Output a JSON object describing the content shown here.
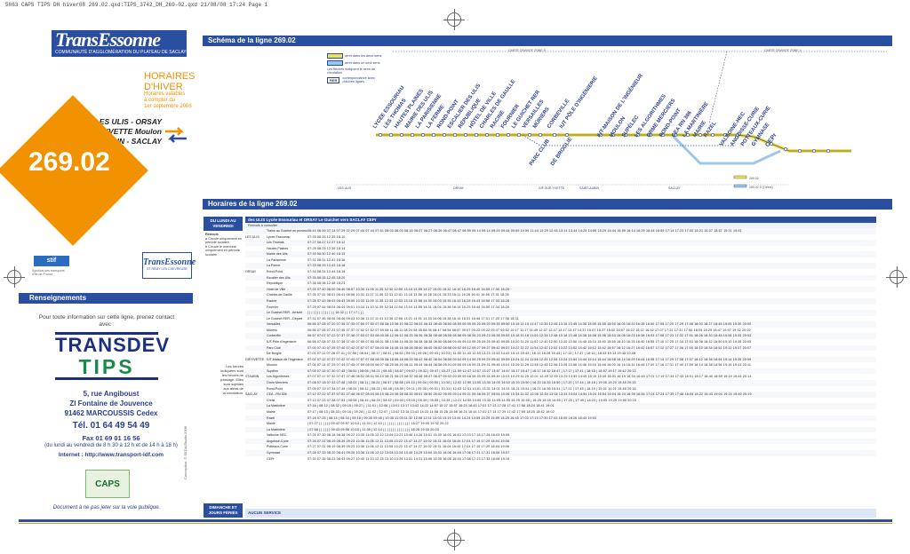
{
  "print_header": "5063 CAPS TIPS DH hiver08 269.02.qxd:TIPS_3742_DH_269-02.qxd  21/08/08  17:24  Page 1",
  "brand": {
    "logo": "TransEssonne",
    "subtitle": "COMMUNAUTÉ D'AGGLOMÉRATION DU PLATEAU DE SACLAY",
    "season_line1": "HORAIRES",
    "season_line2": "D'HIVER",
    "validity": [
      "Horaires valables",
      "à compter du",
      "1er septembre 2008"
    ]
  },
  "line": {
    "number": "269.02",
    "destinations": [
      "LES ULIS - ORSAY",
      "GIF-SUR-YVETTE Moulon",
      "SAINT-AUBIN - SACLAY"
    ],
    "colors": {
      "orange": "#f39200",
      "blue": "#2a4ea0",
      "yellow": "#f7e04a"
    }
  },
  "partners": {
    "stif": "stif",
    "stif_caption": "Syndicat des transports d'Île-de-France",
    "te_small": "TransEssonne",
    "te_small_sub": "ST RÉMY LES CHEVREUSE"
  },
  "renseignements": {
    "title": "Renseignements",
    "intro": "Pour toute information sur cette ligne, prenez contact avec :",
    "company_line1": "TRANSDEV",
    "company_line2": "TIPS",
    "address": [
      "5, rue Angiboust",
      "ZI Fontaine de Jouvence",
      "91462 MARCOUSSIS Cedex"
    ],
    "tel": "Tél. 01 64 49 54 49",
    "fax": "Fax 01 69 01 16 56",
    "hours": "(du lundi au vendredi de 8 h 30 à 12 h et de 14 h à 18 h)",
    "internet": "Internet : http://www.transport-idf.com",
    "caps": "CAPS",
    "note": "Document à ne pas jeter sur la voie publique.",
    "credit": "Conception: © SEDA/Studio 2008"
  },
  "scheme": {
    "title": "Schéma de la ligne 269.02",
    "legend": [
      "arrêt dans les deux sens",
      "arrêt dans un seul sens",
      "Les flèches indiquent le sens de circulation",
      "RER",
      "correspondance avec d'autres lignes"
    ],
    "zone_left": "CARTE ORANGE ZONE 5",
    "zone_right": "CARTE ORANGE ZONE 4",
    "stops": [
      "LYCÉE ESSOURIAU",
      "LES THOMAS",
      "HAUTES PLAINES",
      "MAIRIE DES ULIS",
      "LA PARISIENNE",
      "LA FERME",
      "ROND-POINT",
      "ESCALIER DES ULIS",
      "RÉPUBLIQUE",
      "HÔTEL DE VILLE",
      "CHARLES DE GAULLE",
      "RACINE",
      "FOURNIER",
      "LE GUICHET RER",
      "VERSAILLES",
      "MÛRIERS",
      "CORBEVILLE",
      "IUT PÔLE D'INGÉNIERIE",
      "PARC CLUB",
      "DE BROGLIE",
      "IUT-MAISON DE L'INGÉNIEUR",
      "MOULON",
      "SUPÉLEC",
      "LES ALGORITHMES",
      "ORME MERCIERS",
      "ROND-POINT",
      "CEA RN 306",
      "LA MARTINIÈRE",
      "MAIRIE",
      "RAZEL",
      "VALBOINE-HEC",
      "ANGOISSE-CURIE",
      "POTTEAUX-CURIE",
      "GYMNASE",
      "CEPr"
    ],
    "communes": [
      "LES ULIS",
      "ORSAY",
      "GIF-SUR-YVETTE",
      "SAINT-AUBIN",
      "SACLAY"
    ],
    "map_legend": [
      "269.02",
      "269.02 D (Direct)"
    ]
  },
  "timetable": {
    "title": "Horaires de la ligne 269.02",
    "days": "DU LUNDI AU VENDREDI",
    "days2": "DIMANCHE ET JOURS FÉRIÉS",
    "header": "des ULIS Lycée Essouriau et ORSAY Le Guichet vers SACLAY CEPr",
    "renvois": "Renvois à consulter",
    "remarks": [
      "Renvois",
      "a Circule uniquement en période scolaire",
      "b Circule le mercredi uniquement en période scolaire"
    ],
    "heures_note": "Les heures indiquées sont les heures de passage. Elles sont sujettes aux aléas de la circulation.",
    "service": "AUCUN SERVICE",
    "rows": [
      {
        "city": "",
        "stop": "Trains au Guichet en provenance de Paris",
        "times": "06:44  06:59  07:14  07:29  07:29  07:44  07:44  07:51  08:03  08:03  08:15  08:27  08:27  08:39  08:47  08:47  08:59  09:14  09:14  09:29  09:44  09:59  10:59  11:44  12:29  12:44  13:14  13:44  14:29  14:59  15:29  15:44  15:59  16:14  16:29  16:44  16:59  17:14  17:23  17:52  18:21  18:37  18:57  19:21  19:51"
      },
      {
        "city": "LES ULIS",
        "stop": "Lycée Essouriau",
        "times": "07:25  08:25  12:35  18:10"
      },
      {
        "city": "",
        "stop": "Les Thomas",
        "times": "07:27  08:27  12:37  18:12"
      },
      {
        "city": "",
        "stop": "Hautes Plaines",
        "times": "07:29  08:29  12:39  18:14"
      },
      {
        "city": "",
        "stop": "Mairie des Ulis",
        "times": "07:30  08:30  12:40  18:15"
      },
      {
        "city": "",
        "stop": "La Parisienne",
        "times": "07:31  08:31  12:41  18:16"
      },
      {
        "city": "",
        "stop": "La Ferme",
        "times": "07:33  08:33  12:43  18:18"
      },
      {
        "city": "ORSAY",
        "stop": "Rond-Point",
        "times": "07:34  08:34  12:44  18:19"
      },
      {
        "city": "",
        "stop": "Escalier des Ulis",
        "times": "07:35  08:35  12:45  18:20"
      },
      {
        "city": "",
        "stop": "République",
        "times": "07:38  08:38  12:48  18:23"
      },
      {
        "city": "",
        "stop": "Hôtel de Ville",
        "times": "07:25  07:40  08:00  08:40  08:57  10:30  11:06  11:35  12:30  12:50  13:15  13:55  14:27  15:00  15:32  16:10  16:25  16:40  16:55  17:30  18:25"
      },
      {
        "city": "",
        "stop": "Charles de Gaulle",
        "times": "07:26  07:41  08:01  08:41  08:58  10:31  11:07  11:36  12:31  12:51  13:16  13:56  14:28  15:01  15:33  16:11  16:26  16:41  16:56  17:31  18:26"
      },
      {
        "city": "",
        "stop": "Racine",
        "times": "07:28  07:43  08:03  08:43  09:00  10:33  11:09  11:38  12:33  12:53  13:18  13:58  14:30  15:03  15:35  16:13  16:28  16:43  16:58  17:33  18:28"
      },
      {
        "city": "",
        "stop": "Fournier",
        "times": "07:29  07:44  08:04  08:44  09:01  10:34  11:10  11:39  12:34  12:54  13:19  13:59  14:31  15:04  15:36  16:14  16:29  16:44  16:59  17:34  18:29"
      },
      {
        "city": "",
        "stop": "Le Guichet RER - Arrivée",
        "times": "|  |  |  |  |  |  |  |  |  |  |  |  |  |  16:32  |  |  17:17  |  |  |"
      },
      {
        "city": "",
        "stop": "Le Guichet RER - Départ",
        "times": "07:31  07:46  08:06  08:46  09:03  10:36  11:12  11:41  12:36  12:56  13:21  14:01  14:33  15:06  15:38  16:15  16:31  16:46  17:01  17:20  17:36  18:31"
      },
      {
        "city": "",
        "stop": "Versailles",
        "times": "06:55  07:05  07:20  07:35  07:35  07:50  07:50  07:58  08:10  08:10  08:22  08:33  08:33  08:45  08:53  08:55  09:05  09:20  09:20  09:35  09:50  10:15  11:15  11:47  12:35  12:45  13:15  13:45  14:35  15:05  15:35  15:50  16:05  16:20  16:35  16:50  17:05  17:20  17:29  17:48  18:03  18:27  18:45  19:05  19:30  20:00"
      },
      {
        "city": "",
        "stop": "Mûriers",
        "times": "06:56  07:06  07:21  07:36  07:37  07:52  07:52  07:59  08:11  08:11  08:24  08:35  08:35  08:47  08:54  08:57  09:07  09:22  09:22  09:37  09:52  10:17  11:17  11:49  12:37  12:47  13:17  13:47  14:37  15:07  15:37  15:52  16:07  16:22  16:37  16:52  17:07  17:22  17:31  17:50  18:05  18:29  18:47  19:07  19:32  20:02"
      },
      {
        "city": "",
        "stop": "Corbeville",
        "times": "06:57  07:07  07:22  07:37  07:38  07:53  07:53  08:00  08:12  08:12  08:25  08:36  08:36  08:48  08:55  08:58  09:08  09:23  09:23  09:38  09:53  10:18  11:18  11:50  12:38  12:48  13:18  13:48  14:38  15:08  15:38  15:53  16:08  16:23  16:38  16:53  17:08  17:23  17:32  17:51  18:06  18:30  18:48  19:08  19:33  20:03"
      },
      {
        "city": "",
        "stop": "IUT-Pôle d'Ingénierie",
        "times": "06:58  07:08  07:23  07:38  07:40  07:55  07:55  08:01  08:14  08:14  08:26  08:38  08:38  08:50  08:56  09:00  09:10  09:25  09:25  09:40  09:55  10:20  11:20  11:52  12:40  12:50  13:20  13:50  14:40  15:10  15:40  15:55  16:10  16:25  16:40  16:55  17:10  17:25  17:34  17:53  18:08  18:32  18:50  19:10  19:35  20:05"
      },
      {
        "city": "",
        "stop": "Parc Club",
        "times": "07:00  07:10  07:25  07:40  07:42  07:57  07:57  08:03  08:16  08:16  08:28  08:40  08:40  08:52  08:58  09:02  09:12  09:27  09:27  09:42  09:57  10:22  11:22  11:54  12:42  12:52  13:22  13:52  14:42  15:12  15:42  15:57  16:12  16:27  16:42  16:57  17:12  17:27  17:36  17:55  18:10  18:34  18:52  19:12  19:37  20:07"
      },
      {
        "city": "",
        "stop": "De Broglie",
        "times": "07:01  07:11  07:26  07:41  |  07:56  |  08:04  |  08:17  |  08:41  |  08:53  |  09:03  |  09:28  |  09:43  |  10:23  |  11:55  12:43  12:53  13:23  13:53  14:43  15:13  15:43  |  16:13  16:28  16:43  |  17:13  |  17:37  |  18:11  |  18:53  19:13  19:38  20:08"
      },
      {
        "city": "GIF/YVETTE",
        "stop": "IUT-Maison de l'Ingénieur",
        "times": "07:02  07:12  07:27  07:42  07:43  07:57  07:58  08:05  08:18  08:18  08:29  08:42  08:42  08:54  08:59  09:04  09:14  09:29  09:29  09:44  09:59  10:24  11:24  11:56  12:44  12:54  13:24  13:54  14:44  15:14  15:44  15:58  16:14  16:29  16:44  16:58  17:14  17:29  17:38  17:57  18:12  18:36  18:54  19:14  19:39  20:09"
      },
      {
        "city": "",
        "stop": "Moulon",
        "times": "07:04  07:14  07:29  07:44  07:45  07:59  08:00  08:07  08:20  08:20  08:31  08:44  08:44  08:56  09:01  09:06  09:16  09:31  09:31  09:46  10:01  10:26  11:26  11:58  12:46  12:56  13:26  13:56  14:46  15:16  15:46  16:00  16:16  16:31  16:46  17:00  17:16  17:31  17:40  17:59  18:14  18:38  18:56  19:16  19:41  20:11"
      },
      {
        "city": "",
        "stop": "Supélec",
        "times": "07:05  07:15  07:30  07:45  |  08:00  |  08:08  |  08:21  |  08:45  |  08:57  |  09:07  |  09:32  |  09:47  |  10:27  |  11:59  12:47  12:57  13:27  13:57  14:47  15:17  15:47  |  16:17  16:32  16:47  |  17:17  |  17:41  |  18:15  |  18:57  19:17  19:42  20:12"
      },
      {
        "city": "STAUBIN",
        "stop": "Les Algorithmes",
        "times": "07:07  07:17  07:32  07:47  07:46  08:02  08:01  08:10  08:21  08:23  08:32  08:46  08:47  08:57  09:02  09:09  09:18  09:33  09:34  09:49  10:03  10:29  11:29  12:01  12:49  12:59  13:29  13:59  14:49  15:19  15:49  16:01  16:19  16:34  16:49  17:01  17:19  17:34  17:43  18:01  18:17  18:40  18:59  19:19  19:44  20:14"
      },
      {
        "city": "",
        "stop": "Orme Merciers",
        "times": "07:08  07:18  07:33  07:48  |  08:03  |  08:11  |  08:24  |  08:47  |  08:58  |  09:10  |  09:34  |  09:50  |  10:30  |  12:02  12:50  13:00  13:30  14:00  14:50  15:20  15:50  |  16:20  16:35  16:50  |  17:20  |  17:44  |  18:18  |  19:00  19:20  19:45  20:15"
      },
      {
        "city": "",
        "stop": "Rond-Point",
        "times": "07:09  07:19  07:34  07:49  |  08:04  |  08:12  |  08:25  |  08:48  |  08:59  |  09:11  |  09:35  |  09:51  |  10:31  |  12:03  12:51  13:01  13:31  14:01  14:51  15:21  15:51  |  16:21  16:36  16:51  |  17:21  |  17:45  |  18:19  |  19:01  19:21  19:46  20:16"
      },
      {
        "city": "SACLAY",
        "stop": "CEA - RN 306",
        "times": "07:12  07:22  07:37  07:52  07:48  08:07  08:04  08:15  08:24  08:28  08:35  08:51  08:50  09:02  09:05  09:14  09:21  09:38  09:37  09:54  10:06  10:34  11:32  12:06  12:54  13:04  13:34  14:04  14:54  15:24  15:54  16:04  16:24  16:39  16:54  17:04  17:24  17:39  17:48  18:04  18:22  18:43  19:04  19:24  19:49  20:19"
      },
      {
        "city": "",
        "stop": "Christ",
        "times": "07:13  07:23  07:38  07:53  |  08:08  |  08:16  |  08:29  |  08:52  |  09:03  |  09:15  |  09:39  |  09:55  |  10:35  |  12:07  12:55  13:05  13:35  14:05  14:55  15:25  15:55  |  16:25  16:40  16:55  |  17:25  |  17:49  |  18:23  |  19:05  19:25  19:50  20:20"
      },
      {
        "city": "",
        "stop": "La Martinière",
        "times": "07:16  |  08:12  |  08:32  |  09:15  |  09:27  |  |  11:01  |  12:06  |  13:01  13:17  13:42  14:22  14:57  15:27  15:57  16:23  16:43  17:01  17:13  17:28  17:41  17:58  18:24  18:41  19:01"
      },
      {
        "city": "",
        "stop": "Mairie",
        "times": "07:17  |  08:13  |  08:33  |  09:16  |  09:28  |  |  11:02  |  12:07  |  13:02  13:18  13:43  14:23  14:58  15:28  15:58  16:24  16:44  17:02  17:14  17:29  17:42  17:59  18:25  18:42  19:02"
      },
      {
        "city": "",
        "stop": "Razel",
        "times": "07:18  07:25  |  08:14  |  08:34  |  09:18  |  09:30  09:40  |  10:35  11:03  11:32  12:08  12:11  13:03  13:19  13:44  14:24  14:59  15:29  15:59  16:25  16:45  17:03  17:15  17:30  17:43  18:00  18:26  18:43  19:03"
      },
      {
        "city": "",
        "stop": "Mairie",
        "times": "|  07:27  |  |  |  |  |  |  09:42  09:57  10:13  |  11:34  |  12:13  |  |  |  |  |  |  |  |  |  |  |  |  |  |  18:27  19:05  19:32  20:22"
      },
      {
        "city": "",
        "stop": "La Martinière",
        "times": "|  07:58  |  |  |  |  |  |  09:43  09:58  10:15  |  11:35  |  12:14  |  |  |  |  |  |  |  |  |  |  |  |  |  |  18:28  19:33  20:23"
      },
      {
        "city": "",
        "stop": "Valboine-HEC",
        "times": "07:25  07:30  08:18  08:38  09:22  10:35  11:05  12:10  13:06  13:21  13:46  14:26  15:01  15:30  16:03  16:43  17:03  17:18  17:28  18:03  19:05"
      },
      {
        "city": "",
        "stop": "Angoisse-Curie",
        "times": "07:26  07:31  08:19  08:39  09:23  10:36  11:06  12:11  13:06  13:22  13:47  14:27  15:02  15:31  16:04  16:44  17:04  17:19  17:29  18:04  19:06"
      },
      {
        "city": "",
        "stop": "Potteaux-Curie",
        "times": "07:27  07:31  08:19  08:39  09:23  10:36  11:06  12:11  13:06  13:22  13:47  14:27  15:02  15:31  16:04  16:44  17:04  17:19  17:29  18:04  19:06"
      },
      {
        "city": "",
        "stop": "Gymnase",
        "times": "07:28  07:33  08:20  08:41  09:25  10:38  11:08  12:12  13:08  13:24  13:49  14:29  15:04  15:33  16:06  16:46  17:06  17:21  17:31  18:06  19:07"
      },
      {
        "city": "",
        "stop": "CEPr",
        "times": "07:30  07:35  08:23  08:43  09:27  10:40  11:10  12:15  13:10  13:26  13:51  14:31  15:06  15:35  16:08  16:48  17:08  17:23  17:33  18:08  19:10"
      }
    ]
  }
}
